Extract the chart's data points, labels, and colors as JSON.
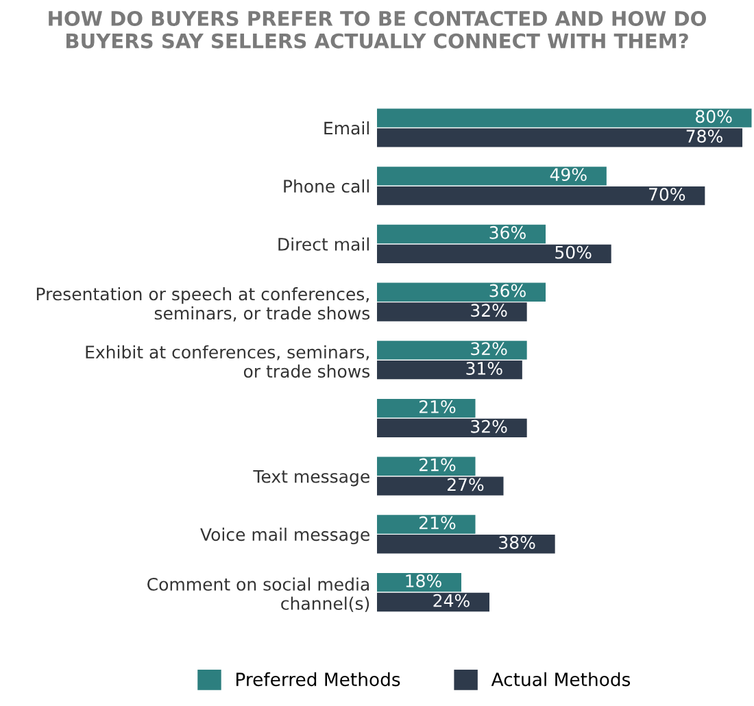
{
  "chart_data": {
    "type": "bar",
    "orientation": "horizontal",
    "title": "HOW DO BUYERS PREFER TO BE CONTACTED AND HOW DO BUYERS SAY SELLERS ACTUALLY CONNECT WITH THEM?",
    "categories": [
      "Email",
      "Phone call",
      "Direct mail",
      "Presentation or speech at conferences,\nseminars, or trade shows",
      "Exhibit at conferences, seminars,\nor trade shows",
      null,
      "Text message",
      "Voice mail message",
      "Comment on social media\nchannel(s)"
    ],
    "series": [
      {
        "name": "Preferred Methods",
        "color": "#2d7f7f",
        "values": [
          80,
          49,
          36,
          36,
          32,
          21,
          21,
          21,
          18
        ],
        "value_labels": [
          "80%",
          "49%",
          "36%",
          "36%",
          "32%",
          "21%",
          "21%",
          "21%",
          "18%"
        ]
      },
      {
        "name": "Actual Methods",
        "color": "#2e3a4b",
        "values": [
          78,
          70,
          50,
          32,
          31,
          32,
          27,
          38,
          24
        ],
        "value_labels": [
          "78%",
          "70%",
          "50%",
          "32%",
          "31%",
          "32%",
          "27%",
          "38%",
          "24%"
        ]
      }
    ],
    "legend": "bottom",
    "grid": false
  }
}
